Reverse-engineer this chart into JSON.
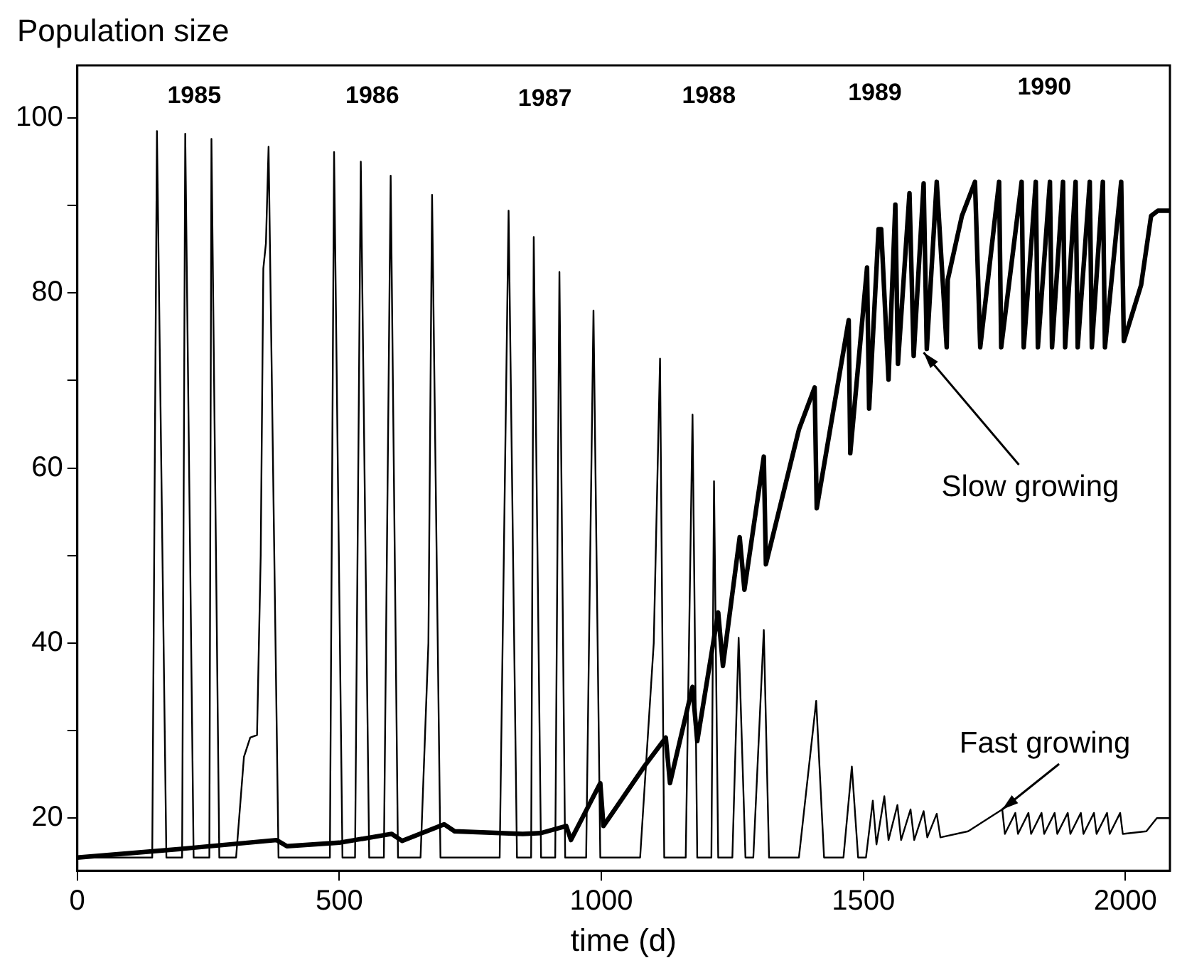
{
  "chart_data": {
    "type": "line",
    "ylabel": "Population size",
    "xlabel": "time (d)",
    "xlim": [
      0,
      2085
    ],
    "ylim": [
      14,
      106
    ],
    "xticks": [
      0,
      500,
      1000,
      1500,
      2000
    ],
    "yticks": [
      20,
      {
        "value": 30,
        "label": null
      },
      40,
      {
        "value": 50,
        "label": null
      },
      60,
      {
        "value": 70,
        "label": null
      },
      80,
      {
        "value": 90,
        "label": null
      },
      100
    ],
    "grid": false,
    "legend": false,
    "marker": "none",
    "line_style": "solid",
    "series": [
      {
        "color": "#000000",
        "x": [
          0,
          143,
          152,
          170,
          200,
          206,
          222,
          252,
          256,
          271,
          303,
          318,
          330,
          343,
          350,
          355,
          360,
          365,
          384,
          482,
          490,
          506,
          530,
          541,
          557,
          585,
          598,
          612,
          655,
          670,
          677,
          693,
          806,
          823,
          839,
          866,
          871,
          885,
          912,
          920,
          931,
          971,
          985,
          998,
          1074,
          1100,
          1112,
          1120,
          1161,
          1174,
          1183,
          1210,
          1215,
          1223,
          1250,
          1262,
          1275,
          1290,
          1310,
          1320,
          1377,
          1410,
          1425,
          1462,
          1478,
          1490,
          1505,
          1518,
          1525,
          1540,
          1548,
          1565,
          1572,
          1590,
          1597,
          1615,
          1622,
          1640,
          1647,
          1700,
          1765,
          1770,
          1790,
          1795,
          1815,
          1820,
          1840,
          1845,
          1865,
          1870,
          1890,
          1895,
          1915,
          1920,
          1940,
          1945,
          1965,
          1970,
          1990,
          1995,
          2040,
          2060,
          2085
        ],
        "values": [
          15.5,
          15.5,
          98.5,
          15.5,
          15.5,
          98.2,
          15.5,
          15.5,
          97.6,
          15.5,
          15.5,
          27,
          29.2,
          29.5,
          50,
          82.8,
          85.7,
          96.7,
          15.5,
          15.5,
          96.1,
          15.5,
          15.5,
          95,
          15.5,
          15.5,
          93.4,
          15.5,
          15.5,
          40,
          91.2,
          15.5,
          15.5,
          89.4,
          15.5,
          15.5,
          86.4,
          15.5,
          15.5,
          82.4,
          15.5,
          15.5,
          78,
          15.5,
          15.5,
          40,
          72.5,
          15.5,
          15.5,
          66.1,
          15.5,
          15.5,
          58.5,
          15.5,
          15.5,
          40.6,
          15.5,
          15.5,
          41.5,
          15.5,
          15.5,
          33.4,
          15.5,
          15.5,
          25.9,
          15.5,
          15.5,
          22,
          17,
          22.5,
          17.5,
          21.5,
          17.5,
          21,
          17.5,
          20.8,
          17.8,
          20.5,
          17.8,
          18.5,
          21,
          18.2,
          20.6,
          18.2,
          20.6,
          18.2,
          20.6,
          18.2,
          20.6,
          18.2,
          20.6,
          18.2,
          20.6,
          18.2,
          20.6,
          18.2,
          20.6,
          18.2,
          20.6,
          18.2,
          18.5,
          20,
          20
        ]
      },
      {
        "color": "#000000",
        "x": [
          0,
          200,
          380,
          400,
          500,
          600,
          620,
          700,
          720,
          850,
          885,
          933,
          942,
          998,
          1004,
          1083,
          1123,
          1131,
          1174,
          1183,
          1223,
          1232,
          1264,
          1273,
          1310,
          1314,
          1377,
          1407,
          1411,
          1472,
          1475,
          1507,
          1511,
          1529,
          1534,
          1548,
          1561,
          1566,
          1588,
          1596,
          1615,
          1621,
          1640,
          1659,
          1661,
          1688,
          1713,
          1723,
          1759,
          1763,
          1802,
          1806,
          1829,
          1833,
          1856,
          1860,
          1881,
          1885,
          1905,
          1909,
          1932,
          1936,
          1957,
          1961,
          1992,
          1997,
          2030,
          2049,
          2062,
          2085
        ],
        "values": [
          15.5,
          16.5,
          17.5,
          16.8,
          17.2,
          18.2,
          17.4,
          19.3,
          18.5,
          18.2,
          18.3,
          19.1,
          17.5,
          24,
          19.1,
          26,
          29.2,
          24,
          35,
          28.8,
          43.5,
          37.4,
          52.1,
          46.1,
          61.3,
          49,
          64.4,
          69.2,
          55.4,
          76.9,
          61.7,
          82.9,
          66.8,
          87.3,
          87.3,
          70.1,
          90.1,
          71.9,
          91.4,
          72.8,
          92.5,
          73.6,
          92.7,
          73.8,
          81.5,
          88.8,
          92.7,
          73.8,
          92.7,
          73.8,
          92.7,
          73.8,
          92.7,
          73.8,
          92.7,
          73.8,
          92.7,
          73.8,
          92.7,
          73.8,
          92.7,
          73.8,
          92.7,
          73.8,
          92.7,
          74.5,
          80.9,
          88.8,
          89.4,
          89.4
        ]
      }
    ],
    "annotations": [
      "1985",
      "1986",
      "1987",
      "1988",
      "1989",
      "1990",
      {
        "text": "Slow growing",
        "x": 1615,
        "y": 73.2
      },
      {
        "text": "Fast growing",
        "x": 1765,
        "y": 21
      }
    ]
  }
}
